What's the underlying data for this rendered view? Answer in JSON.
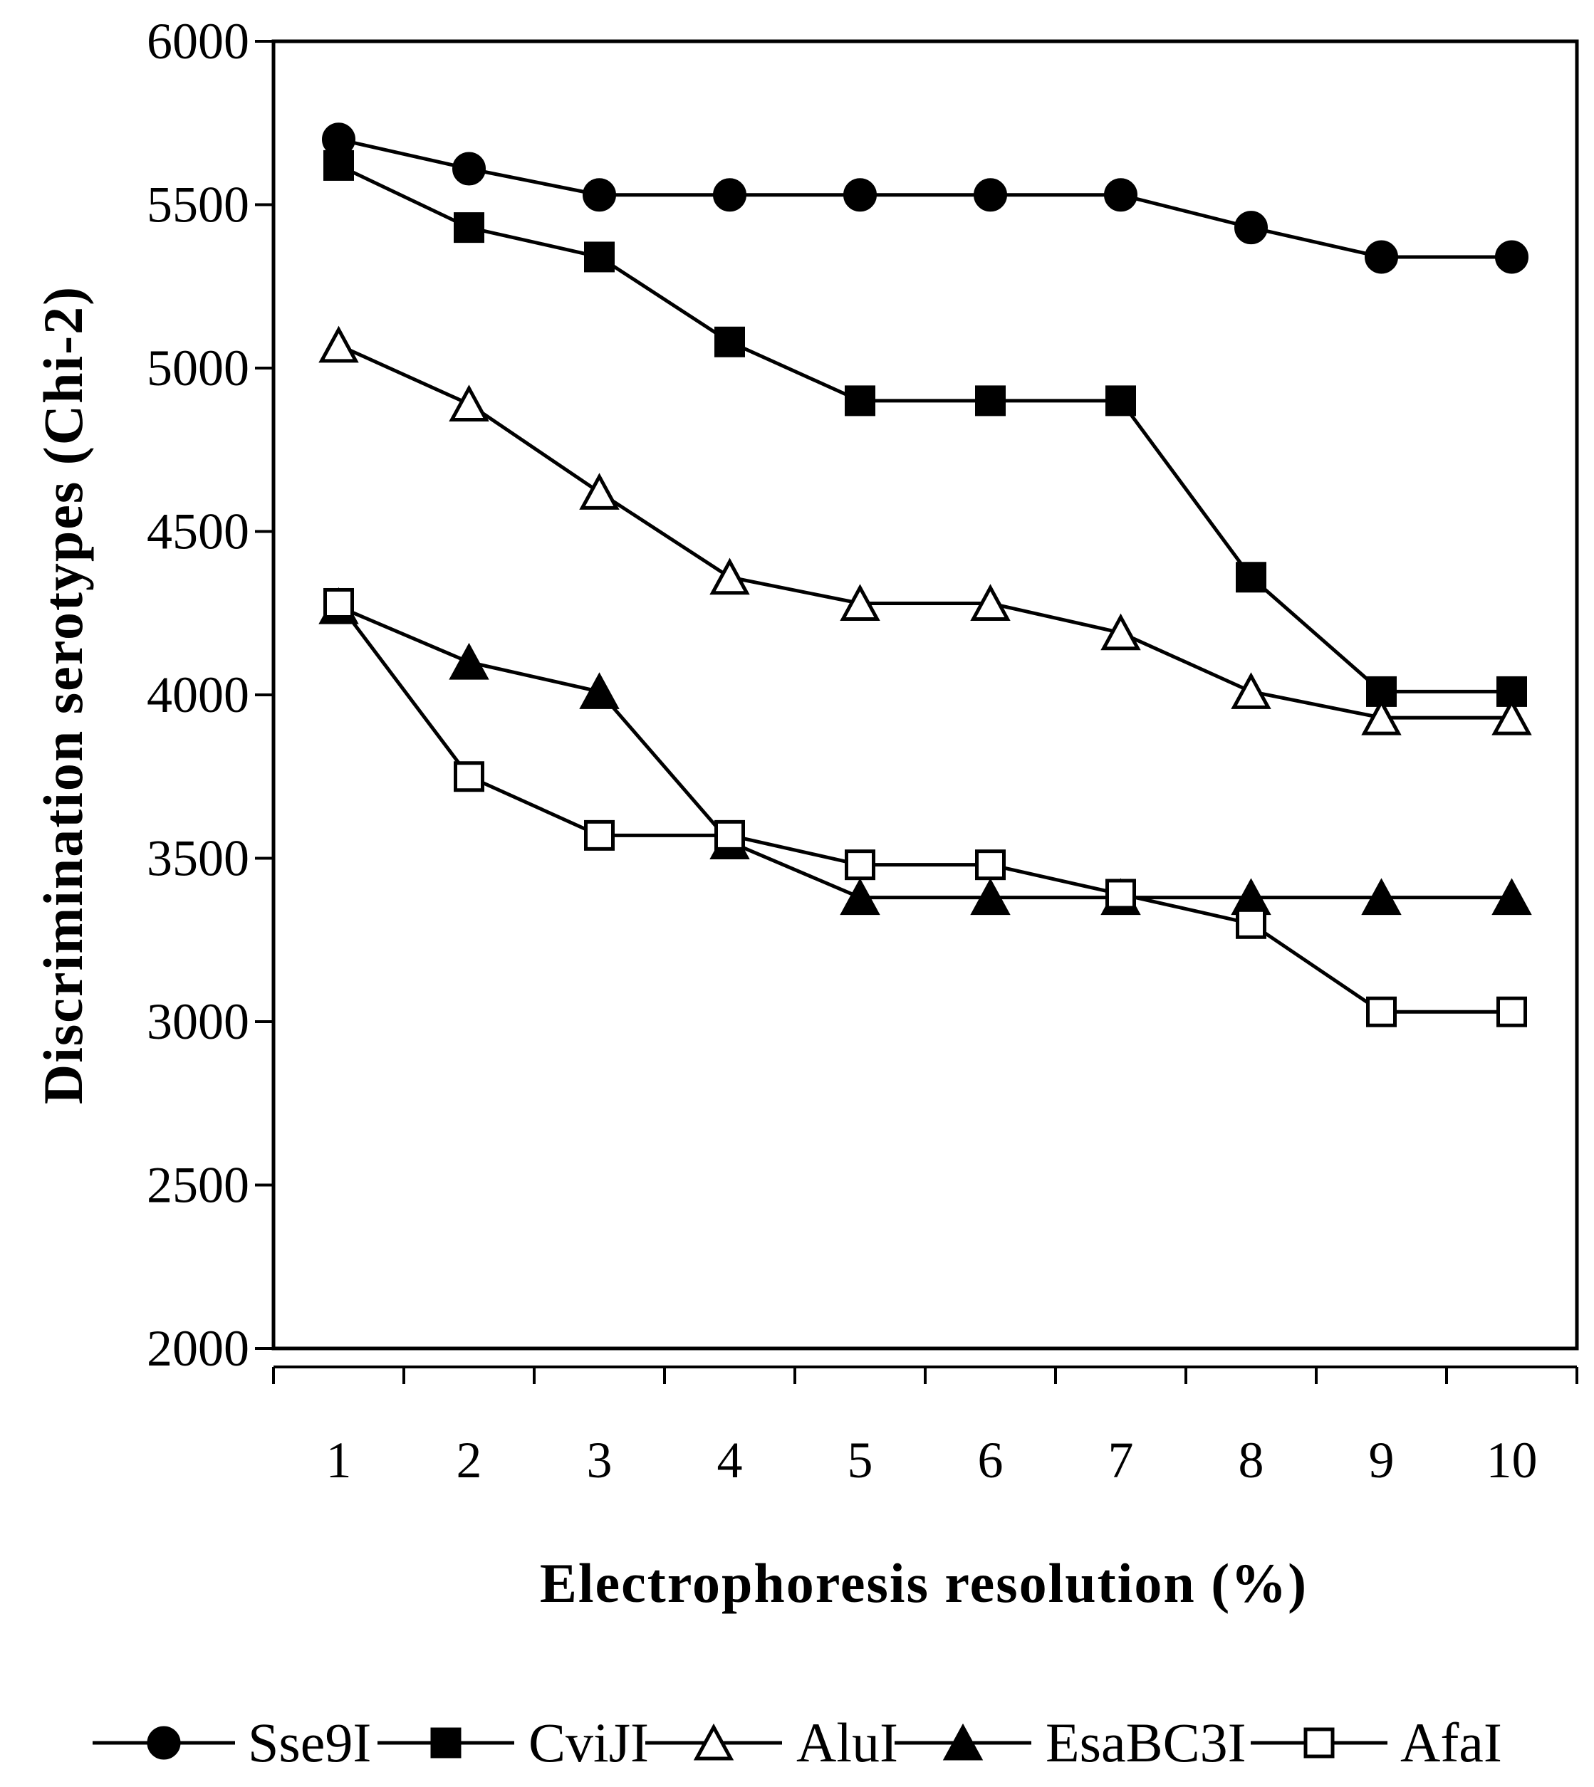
{
  "chart_data": {
    "type": "line",
    "title": "",
    "xlabel": "Electrophoresis resolution (%)",
    "ylabel": "Discrimination serotypes (Chi-2)",
    "categories": [
      "1",
      "2",
      "3",
      "4",
      "5",
      "6",
      "7",
      "8",
      "9",
      "10"
    ],
    "ylim": [
      2000,
      6000
    ],
    "yticks": [
      "2000",
      "2500",
      "3000",
      "3500",
      "4000",
      "4500",
      "5000",
      "5500",
      "6000"
    ],
    "grid": false,
    "legend_position": "bottom",
    "series": [
      {
        "name": "Sse9I",
        "marker": "circle",
        "fill": "#000000",
        "values": [
          5700,
          5610,
          5530,
          5530,
          5530,
          5530,
          5530,
          5430,
          5340,
          5340
        ]
      },
      {
        "name": "CviJI",
        "marker": "square",
        "fill": "#000000",
        "values": [
          5620,
          5430,
          5340,
          5080,
          4900,
          4900,
          4900,
          4360,
          4010,
          4010
        ]
      },
      {
        "name": "AluI",
        "marker": "triangle",
        "fill": "#ffffff",
        "values": [
          5070,
          4890,
          4620,
          4360,
          4280,
          4280,
          4190,
          4010,
          3930,
          3930
        ]
      },
      {
        "name": "EsaBC3I",
        "marker": "triangle",
        "fill": "#000000",
        "values": [
          4270,
          4100,
          4010,
          3550,
          3380,
          3380,
          3380,
          3380,
          3380,
          3380
        ]
      },
      {
        "name": "AfaI",
        "marker": "square",
        "fill": "#ffffff",
        "values": [
          4280,
          3750,
          3570,
          3570,
          3480,
          3480,
          3390,
          3300,
          3030,
          3030
        ]
      }
    ]
  }
}
